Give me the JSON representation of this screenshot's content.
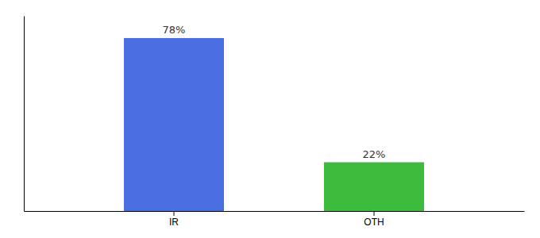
{
  "chart_data": {
    "type": "bar",
    "categories": [
      "IR",
      "OTH"
    ],
    "values": [
      78,
      22
    ],
    "colors": [
      "#4a6fe3",
      "#3dbb3d"
    ],
    "value_labels": [
      "78%",
      "22%"
    ],
    "data_labels": true,
    "ylim": [
      0,
      88
    ],
    "tick_labels": "x",
    "grid": false
  }
}
